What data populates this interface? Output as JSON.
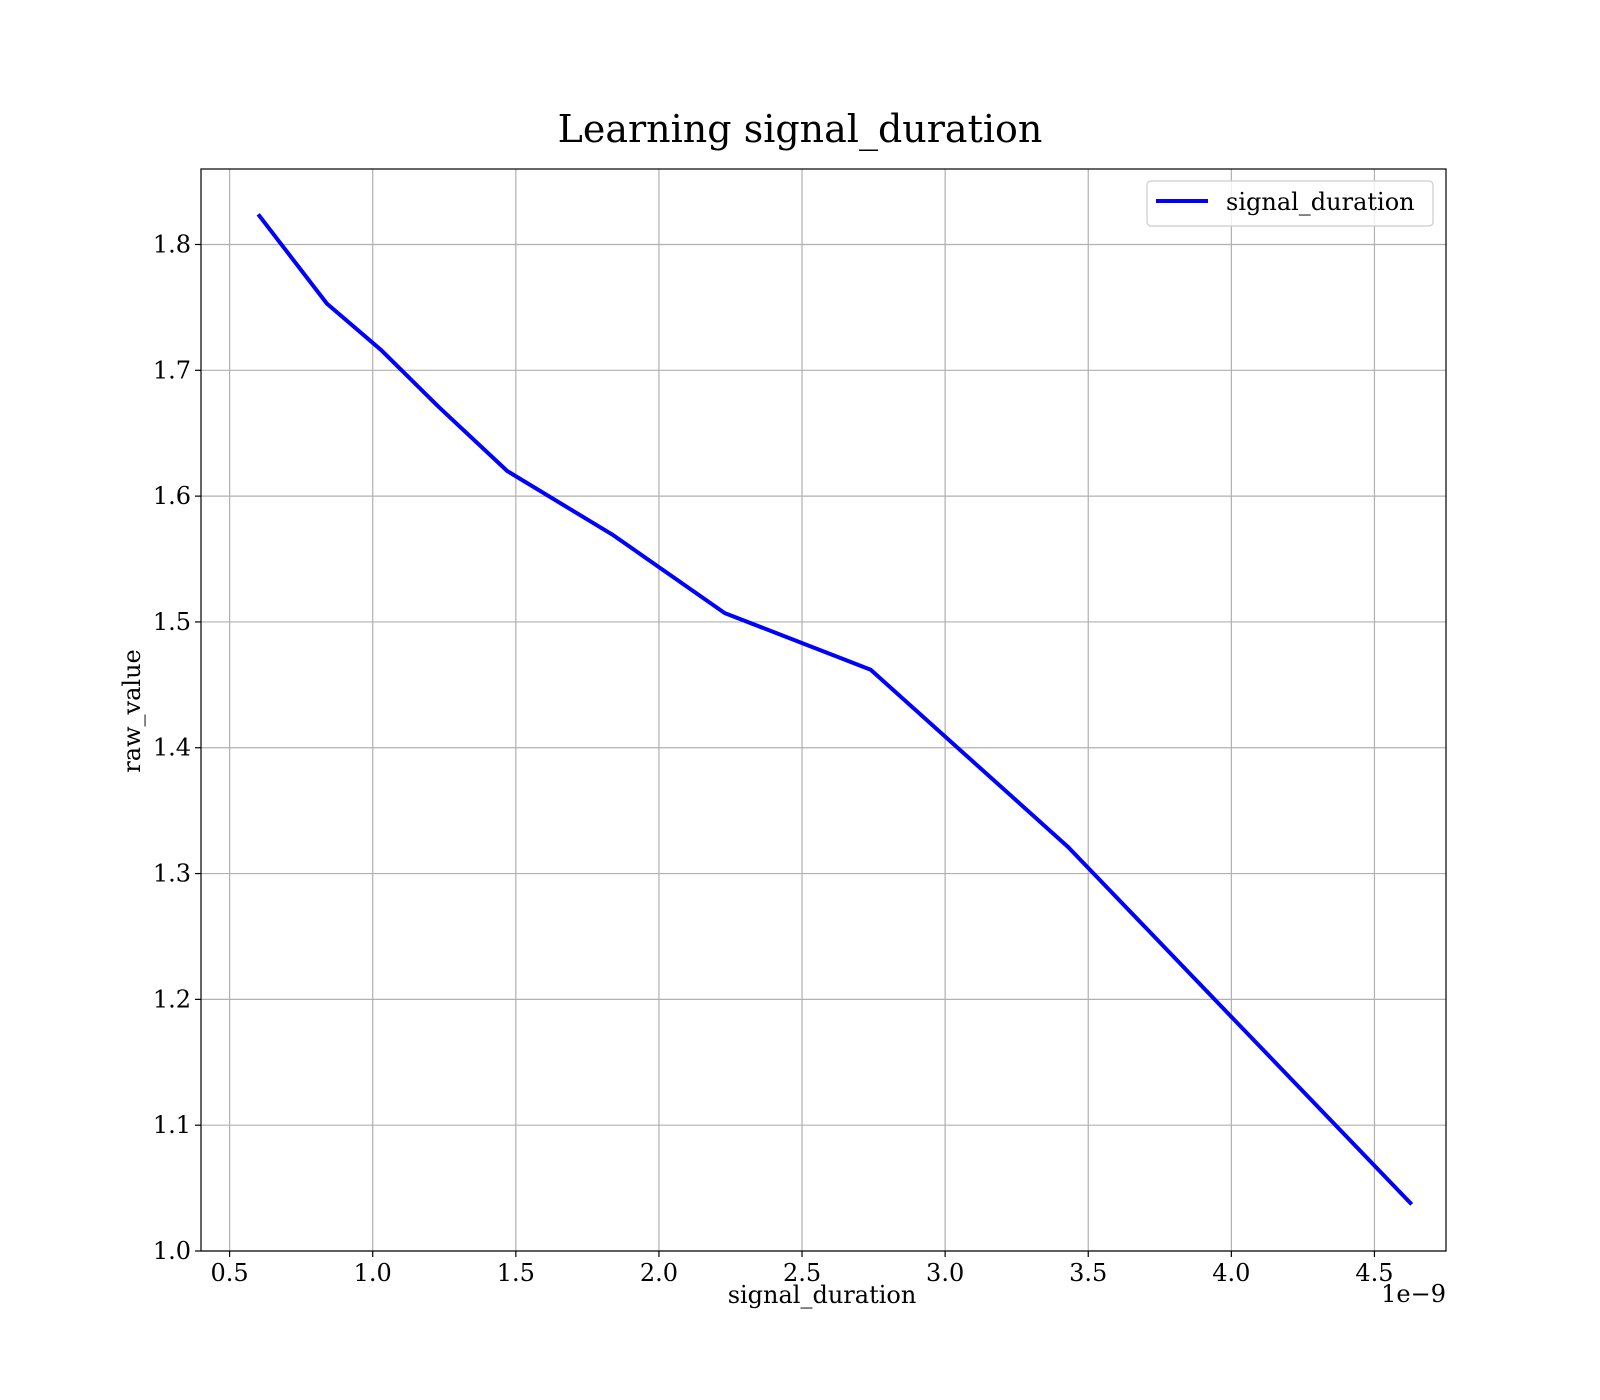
{
  "chart_data": {
    "type": "line",
    "title": "Learning signal_duration",
    "xlabel": "signal_duration",
    "ylabel": "raw_value",
    "x_offset_label": "1e−9",
    "x_scale_exponent": -9,
    "xlim": [
      0.4,
      4.75
    ],
    "ylim": [
      1.0,
      1.86
    ],
    "xticks": [
      0.5,
      1.0,
      1.5,
      2.0,
      2.5,
      3.0,
      3.5,
      4.0,
      4.5
    ],
    "xtick_labels": [
      "0.5",
      "1.0",
      "1.5",
      "2.0",
      "2.5",
      "3.0",
      "3.5",
      "4.0",
      "4.5"
    ],
    "yticks": [
      1.0,
      1.1,
      1.2,
      1.3,
      1.4,
      1.5,
      1.6,
      1.7,
      1.8
    ],
    "ytick_labels": [
      "1.0",
      "1.1",
      "1.2",
      "1.3",
      "1.4",
      "1.5",
      "1.6",
      "1.7",
      "1.8"
    ],
    "grid": true,
    "legend_position": "upper right",
    "series": [
      {
        "name": "signal_duration",
        "color": "#0000ff",
        "x": [
          0.6,
          0.84,
          1.03,
          1.23,
          1.47,
          1.84,
          2.23,
          2.74,
          3.43,
          4.63
        ],
        "y": [
          1.824,
          1.753,
          1.716,
          1.671,
          1.62,
          1.569,
          1.507,
          1.462,
          1.321,
          1.037
        ]
      }
    ]
  }
}
